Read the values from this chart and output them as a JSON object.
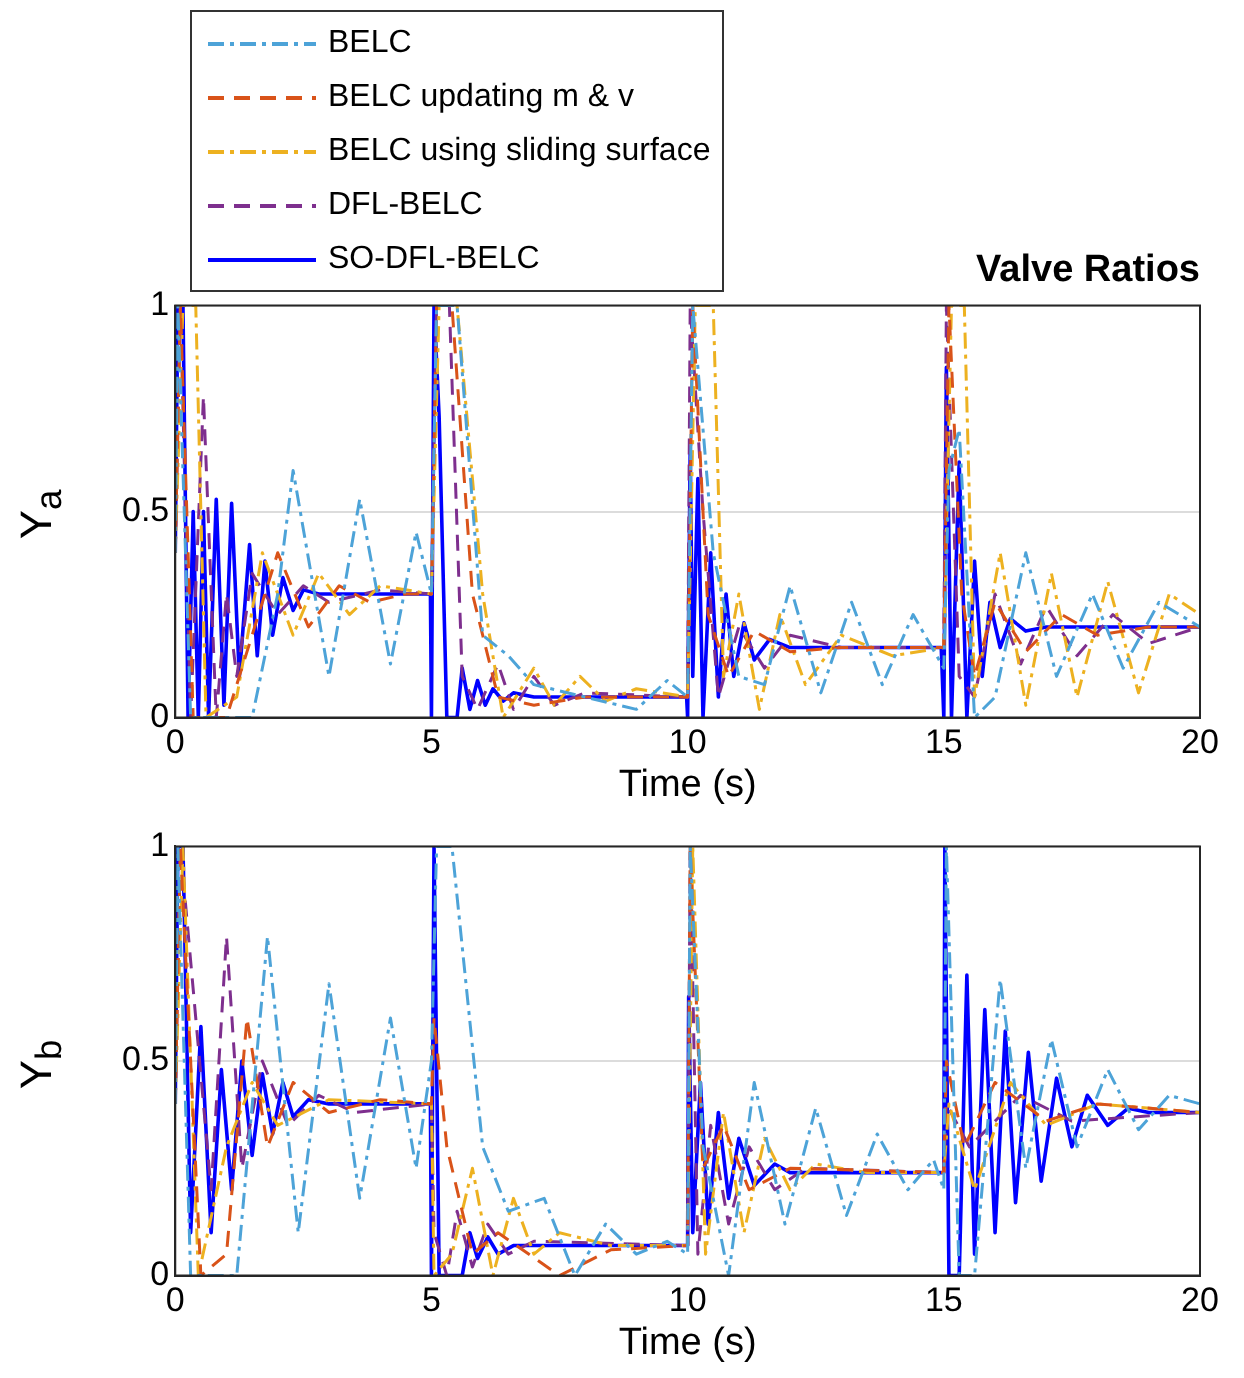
{
  "chart_data": [
    {
      "type": "line",
      "title": "Valve Ratios",
      "xlabel": "Time (s)",
      "ylabel": "Y$_{a}$",
      "xlim": [
        0,
        20
      ],
      "xticks": [
        0,
        5,
        10,
        15,
        20
      ],
      "ylim": [
        0,
        1
      ],
      "yticks": [
        0,
        0.5,
        1
      ],
      "grid": "y",
      "legend": "top left",
      "series": [
        {
          "name": "BELC",
          "color": "#4da3d8",
          "line_style": "dashdot",
          "x": [
            0,
            0.05,
            0.3,
            1.5,
            2.0,
            2.3,
            3.0,
            3.6,
            4.2,
            4.7,
            5.0,
            5.1,
            5.5,
            6.0,
            6.5,
            7,
            8,
            9,
            9.6,
            10,
            10.1,
            10.5,
            11,
            11.5,
            12,
            12.6,
            13.2,
            13.8,
            14.4,
            15,
            15.1,
            15.3,
            15.6,
            16,
            16.6,
            17.2,
            17.9,
            18.5,
            19.2,
            20
          ],
          "values": [
            0.4,
            1,
            0,
            0,
            0.3,
            0.6,
            0.1,
            0.53,
            0.13,
            0.45,
            0.3,
            1,
            1,
            0.2,
            0.15,
            0.08,
            0.05,
            0.02,
            0.09,
            0.05,
            1,
            0.4,
            0.1,
            0.08,
            0.32,
            0.06,
            0.28,
            0.08,
            0.25,
            0.12,
            0.6,
            0.7,
            0,
            0.05,
            0.4,
            0.1,
            0.3,
            0.12,
            0.28,
            0.22
          ]
        },
        {
          "name": "BELC updating m & v",
          "color": "#d95319",
          "line_style": "dashed",
          "x": [
            0,
            0.1,
            0.35,
            1.0,
            1.5,
            2.0,
            2.6,
            3.2,
            3.8,
            4.5,
            5.0,
            5.1,
            5.4,
            5.8,
            6.3,
            7,
            8,
            10,
            10.1,
            10.4,
            10.8,
            11.3,
            12,
            13,
            15,
            15.1,
            15.35,
            15.6,
            16,
            16.6,
            17.3,
            18,
            19,
            20
          ],
          "values": [
            0.4,
            1,
            0,
            0,
            0.2,
            0.4,
            0.22,
            0.32,
            0.28,
            0.3,
            0.3,
            1,
            1,
            0.3,
            0.05,
            0.03,
            0.05,
            0.05,
            1,
            0.25,
            0.1,
            0.21,
            0.16,
            0.17,
            0.17,
            1,
            0.3,
            0.1,
            0.28,
            0.16,
            0.25,
            0.2,
            0.22,
            0.22
          ]
        },
        {
          "name": "BELC using sliding surface",
          "color": "#edb120",
          "line_style": "dashdot",
          "x": [
            0,
            0.15,
            0.4,
            0.6,
            1.2,
            1.7,
            2.3,
            2.8,
            3.4,
            4,
            5,
            5.15,
            5.5,
            6.0,
            6.4,
            7.0,
            7.4,
            7.9,
            8.4,
            9,
            10,
            10.15,
            10.5,
            10.7,
            11.0,
            11.4,
            11.8,
            12.3,
            13,
            14,
            15,
            15.15,
            15.4,
            15.6,
            16.1,
            16.6,
            17.1,
            17.6,
            18.2,
            18.8,
            19.4,
            20
          ],
          "values": [
            0.4,
            1,
            1,
            0,
            0.05,
            0.4,
            0.2,
            0.35,
            0.25,
            0.32,
            0.3,
            1,
            1,
            0.3,
            0,
            0.12,
            0.03,
            0.1,
            0.04,
            0.07,
            0.05,
            1,
            1,
            0.1,
            0.3,
            0.02,
            0.25,
            0.08,
            0.2,
            0.15,
            0.17,
            1,
            1,
            0.05,
            0.4,
            0.03,
            0.35,
            0.05,
            0.33,
            0.06,
            0.3,
            0.25
          ]
        },
        {
          "name": "DFL-BELC",
          "color": "#7e2f8e",
          "line_style": "dashed",
          "x": [
            0,
            0.1,
            0.3,
            0.55,
            0.8,
            1.0,
            1.2,
            1.5,
            2.0,
            2.5,
            3,
            4,
            5,
            5.1,
            5.35,
            5.6,
            5.9,
            6.3,
            6.6,
            7.0,
            7.4,
            8,
            10,
            10.05,
            10.3,
            10.6,
            11,
            11.5,
            12,
            13,
            15,
            15.05,
            15.3,
            15.6,
            16,
            16.5,
            17,
            17.6,
            18.3,
            19,
            20
          ],
          "values": [
            0.4,
            1,
            0,
            0.78,
            0,
            0.3,
            0.1,
            0.35,
            0.25,
            0.32,
            0.28,
            0.31,
            0.3,
            1,
            1,
            0.1,
            0.02,
            0.13,
            0.02,
            0.1,
            0.03,
            0.06,
            0.05,
            1,
            0.5,
            0.05,
            0.22,
            0.12,
            0.2,
            0.17,
            0.17,
            1,
            0.1,
            0.05,
            0.3,
            0.13,
            0.27,
            0.15,
            0.25,
            0.18,
            0.22
          ]
        },
        {
          "name": "SO-DFL-BELC",
          "color": "#0000ff",
          "line_style": "solid",
          "x": [
            0,
            0.05,
            0.15,
            0.25,
            0.35,
            0.45,
            0.55,
            0.65,
            0.8,
            0.95,
            1.1,
            1.25,
            1.45,
            1.6,
            1.75,
            1.9,
            2.1,
            2.3,
            2.5,
            2.8,
            4.98,
            5.0,
            5.05,
            5.15,
            5.3,
            5.5,
            5.6,
            5.75,
            5.9,
            6.05,
            6.2,
            6.4,
            6.6,
            7,
            9.98,
            10,
            10.05,
            10.1,
            10.2,
            10.3,
            10.45,
            10.6,
            10.75,
            10.9,
            11.1,
            11.3,
            11.6,
            12,
            14.95,
            15,
            15.05,
            15.15,
            15.3,
            15.45,
            15.6,
            15.75,
            15.9,
            16.1,
            16.3,
            16.6,
            17,
            20
          ],
          "values": [
            0.4,
            1,
            1,
            0,
            0.5,
            0,
            0.5,
            0,
            0.53,
            0.03,
            0.52,
            0.1,
            0.42,
            0.15,
            0.38,
            0.2,
            0.34,
            0.26,
            0.31,
            0.3,
            0.3,
            0,
            1,
            0.73,
            0,
            0,
            0.12,
            0.02,
            0.09,
            0.03,
            0.07,
            0.04,
            0.06,
            0.05,
            0.05,
            0,
            0.65,
            0.1,
            0.58,
            0,
            0.4,
            0.05,
            0.3,
            0.1,
            0.23,
            0.14,
            0.19,
            0.17,
            0.17,
            0,
            0.85,
            0,
            0.62,
            0,
            0.38,
            0.1,
            0.28,
            0.17,
            0.24,
            0.21,
            0.22,
            0.22
          ]
        }
      ]
    },
    {
      "type": "line",
      "xlabel": "Time (s)",
      "ylabel": "Y$_{b}$",
      "xlim": [
        0,
        20
      ],
      "xticks": [
        0,
        5,
        10,
        15,
        20
      ],
      "ylim": [
        0,
        1
      ],
      "yticks": [
        0,
        0.5,
        1
      ],
      "grid": "y",
      "series": [
        {
          "color": "#4da3d8",
          "line_style": "dashdot",
          "x": [
            0,
            0.05,
            0.3,
            1.2,
            1.8,
            2.4,
            3.0,
            3.6,
            4.2,
            4.7,
            5.0,
            5.1,
            5.4,
            6.0,
            6.5,
            7.2,
            7.8,
            8.4,
            9.0,
            9.6,
            10,
            10.05,
            10.3,
            10.8,
            11.3,
            11.9,
            12.5,
            13.1,
            13.7,
            14.3,
            14.8,
            15,
            15.05,
            15.3,
            15.6,
            16.1,
            16.6,
            17.1,
            17.6,
            18.2,
            18.8,
            19.4,
            20
          ],
          "values": [
            0.4,
            1,
            0,
            0,
            0.79,
            0.1,
            0.68,
            0.18,
            0.6,
            0.25,
            0.5,
            1,
            1,
            0.3,
            0.15,
            0.18,
            0,
            0.12,
            0.05,
            0.08,
            0.05,
            1,
            0.3,
            0,
            0.45,
            0.12,
            0.39,
            0.14,
            0.33,
            0.2,
            0.27,
            0.2,
            1,
            0,
            0,
            0.69,
            0.25,
            0.55,
            0.3,
            0.48,
            0.34,
            0.42,
            0.4
          ]
        },
        {
          "color": "#d95319",
          "line_style": "dashed",
          "x": [
            0,
            0.1,
            0.5,
            1.0,
            1.4,
            1.8,
            2.3,
            3,
            4,
            5,
            5.05,
            5.3,
            5.8,
            6.3,
            7.5,
            8.5,
            10,
            10.05,
            10.3,
            10.7,
            11.2,
            12,
            15,
            15.05,
            15.4,
            16,
            17,
            18,
            20
          ],
          "values": [
            0.4,
            1,
            0,
            0.05,
            0.6,
            0.3,
            0.45,
            0.38,
            0.41,
            0.4,
            0.6,
            0.3,
            0.05,
            0.1,
            0,
            0.06,
            0.07,
            1,
            0.25,
            0.35,
            0.2,
            0.25,
            0.24,
            0.5,
            0.3,
            0.45,
            0.36,
            0.4,
            0.38
          ]
        },
        {
          "color": "#edb120",
          "line_style": "dashdot",
          "x": [
            0,
            0.15,
            0.45,
            1.0,
            1.5,
            2,
            3,
            5,
            5.05,
            5.4,
            5.8,
            6.2,
            6.6,
            7.0,
            7.5,
            8.5,
            10,
            10.1,
            10.35,
            10.7,
            11.1,
            11.5,
            12,
            12.5,
            13.5,
            15,
            15.1,
            15.6,
            16.3,
            17,
            18,
            20
          ],
          "values": [
            0.4,
            1,
            0,
            0.3,
            0.45,
            0.35,
            0.41,
            0.4,
            0,
            0.05,
            0.25,
            0,
            0.18,
            0.05,
            0.1,
            0.07,
            0.07,
            1,
            0.05,
            0.38,
            0.1,
            0.32,
            0.2,
            0.26,
            0.24,
            0.24,
            0.4,
            0.2,
            0.45,
            0.35,
            0.4,
            0.38
          ]
        },
        {
          "color": "#7e2f8e",
          "line_style": "dashed",
          "x": [
            0,
            0.1,
            0.4,
            0.7,
            1.0,
            1.3,
            1.7,
            2.2,
            2.8,
            3.5,
            5,
            5.05,
            5.3,
            5.5,
            5.8,
            6.1,
            6.5,
            7,
            10,
            10.05,
            10.2,
            10.45,
            10.8,
            11.2,
            11.7,
            12.3,
            15,
            15.05,
            15.5,
            16.5,
            17.5,
            20
          ],
          "values": [
            0.4,
            1,
            0.6,
            0.2,
            0.79,
            0.25,
            0.5,
            0.35,
            0.42,
            0.38,
            0.4,
            0.1,
            0,
            0.15,
            0.02,
            0.12,
            0.05,
            0.08,
            0.07,
            1,
            0.05,
            0.35,
            0.12,
            0.3,
            0.2,
            0.25,
            0.24,
            0.4,
            0.3,
            0.42,
            0.36,
            0.38
          ]
        },
        {
          "color": "#0000ff",
          "line_style": "solid",
          "x": [
            0,
            0.05,
            0.15,
            0.3,
            0.5,
            0.7,
            0.9,
            1.1,
            1.3,
            1.5,
            1.7,
            1.9,
            2.1,
            2.3,
            2.6,
            3,
            4.98,
            5.0,
            5.05,
            5.15,
            5.6,
            5.75,
            5.9,
            6.1,
            6.3,
            6.6,
            10,
            10.02,
            10.1,
            10.25,
            10.4,
            10.6,
            10.8,
            11.0,
            11.3,
            11.7,
            12,
            15,
            15.02,
            15.1,
            15.3,
            15.45,
            15.6,
            15.8,
            16.0,
            16.2,
            16.4,
            16.65,
            16.9,
            17.2,
            17.5,
            17.8,
            18.2,
            18.6,
            19,
            20
          ],
          "values": [
            0.4,
            1,
            1,
            0.1,
            0.58,
            0.1,
            0.48,
            0.2,
            0.5,
            0.28,
            0.47,
            0.33,
            0.45,
            0.37,
            0.41,
            0.4,
            0.4,
            0,
            1,
            0,
            0,
            0.1,
            0.04,
            0.09,
            0.05,
            0.07,
            0.07,
            0.65,
            0.1,
            0.45,
            0.12,
            0.38,
            0.18,
            0.32,
            0.21,
            0.26,
            0.24,
            0.24,
            1,
            0,
            0,
            0.7,
            0.05,
            0.62,
            0.1,
            0.57,
            0.17,
            0.52,
            0.22,
            0.46,
            0.3,
            0.42,
            0.35,
            0.39,
            0.38,
            0.38
          ]
        }
      ]
    }
  ]
}
